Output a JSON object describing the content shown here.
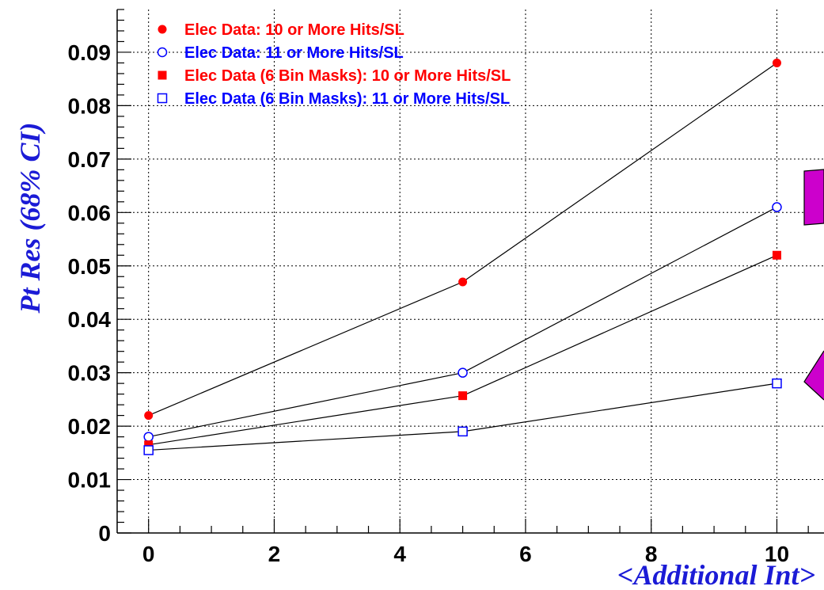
{
  "chart_data": {
    "type": "line",
    "title": "",
    "xlabel": "<Additional Int>",
    "ylabel": "Pt Res (68% CI)",
    "xlim": [
      -0.5,
      10.75
    ],
    "ylim": [
      0,
      0.098
    ],
    "xticks": [
      0,
      2,
      4,
      6,
      8,
      10
    ],
    "yticks": [
      0,
      0.01,
      0.02,
      0.03,
      0.04,
      0.05,
      0.06,
      0.07,
      0.08,
      0.09
    ],
    "grid": true,
    "legend_position": "top-left",
    "series": [
      {
        "name": "Elec Data: 10 or More Hits/SL",
        "marker": "filled-circle",
        "color": "#ff0000",
        "x": [
          0,
          5,
          10
        ],
        "y": [
          0.022,
          0.047,
          0.088
        ]
      },
      {
        "name": "Elec Data: 11 or More Hits/SL",
        "marker": "open-circle",
        "color": "#0000ff",
        "x": [
          0,
          5,
          10
        ],
        "y": [
          0.018,
          0.03,
          0.061
        ]
      },
      {
        "name": "Elec Data (6 Bin Masks): 10 or More Hits/SL",
        "marker": "filled-square",
        "color": "#ff0000",
        "x": [
          0,
          5,
          10
        ],
        "y": [
          0.0165,
          0.0257,
          0.052
        ]
      },
      {
        "name": "Elec Data (6 Bin Masks): 11 or More Hits/SL",
        "marker": "open-square",
        "color": "#0000ff",
        "x": [
          0,
          5,
          10
        ],
        "y": [
          0.0155,
          0.019,
          0.028
        ]
      }
    ],
    "decorations_color": "#cc00cc"
  }
}
